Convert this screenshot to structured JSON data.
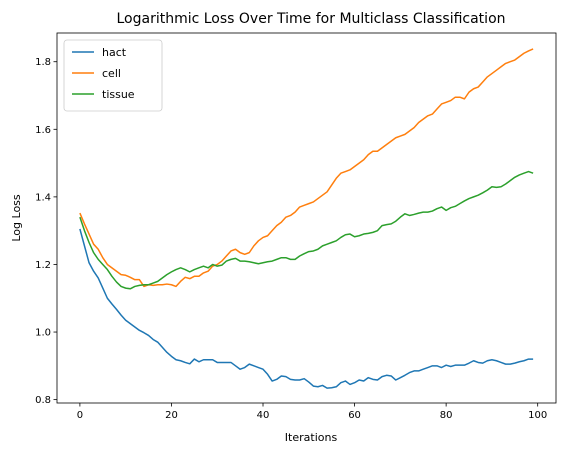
{
  "chart_data": {
    "type": "line",
    "title": "Logarithmic Loss Over Time for Multiclass Classification",
    "xlabel": "Iterations",
    "ylabel": "Log Loss",
    "xlim": [
      -5,
      104
    ],
    "ylim": [
      0.79,
      1.885
    ],
    "xticks": [
      0,
      20,
      40,
      60,
      80,
      100
    ],
    "xtick_labels": [
      "0",
      "20",
      "40",
      "60",
      "80",
      "100"
    ],
    "yticks": [
      0.8,
      1.0,
      1.2,
      1.4,
      1.6,
      1.8
    ],
    "ytick_labels": [
      "0.8",
      "1.0",
      "1.2",
      "1.4",
      "1.6",
      "1.8"
    ],
    "grid": false,
    "legend_position": "upper-left",
    "x": [
      0,
      1,
      2,
      3,
      4,
      5,
      6,
      7,
      8,
      9,
      10,
      11,
      12,
      13,
      14,
      15,
      16,
      17,
      18,
      19,
      20,
      21,
      22,
      23,
      24,
      25,
      26,
      27,
      28,
      29,
      30,
      31,
      32,
      33,
      34,
      35,
      36,
      37,
      38,
      39,
      40,
      41,
      42,
      43,
      44,
      45,
      46,
      47,
      48,
      49,
      50,
      51,
      52,
      53,
      54,
      55,
      56,
      57,
      58,
      59,
      60,
      61,
      62,
      63,
      64,
      65,
      66,
      67,
      68,
      69,
      70,
      71,
      72,
      73,
      74,
      75,
      76,
      77,
      78,
      79,
      80,
      81,
      82,
      83,
      84,
      85,
      86,
      87,
      88,
      89,
      90,
      91,
      92,
      93,
      94,
      95,
      96,
      97,
      98,
      99
    ],
    "series": [
      {
        "name": "hact",
        "color": "#1f77b4",
        "values": [
          1.305,
          1.255,
          1.205,
          1.18,
          1.16,
          1.13,
          1.1,
          1.083,
          1.067,
          1.05,
          1.035,
          1.025,
          1.015,
          1.005,
          0.998,
          0.99,
          0.978,
          0.97,
          0.955,
          0.94,
          0.928,
          0.918,
          0.915,
          0.91,
          0.906,
          0.92,
          0.912,
          0.918,
          0.918,
          0.918,
          0.91,
          0.91,
          0.91,
          0.91,
          0.9,
          0.89,
          0.895,
          0.905,
          0.9,
          0.895,
          0.89,
          0.875,
          0.855,
          0.86,
          0.87,
          0.868,
          0.86,
          0.858,
          0.858,
          0.862,
          0.852,
          0.84,
          0.838,
          0.842,
          0.834,
          0.835,
          0.838,
          0.85,
          0.855,
          0.845,
          0.85,
          0.858,
          0.855,
          0.865,
          0.86,
          0.858,
          0.868,
          0.872,
          0.87,
          0.858,
          0.865,
          0.872,
          0.88,
          0.885,
          0.885,
          0.89,
          0.895,
          0.9,
          0.9,
          0.895,
          0.902,
          0.898,
          0.902,
          0.902,
          0.902,
          0.908,
          0.915,
          0.91,
          0.908,
          0.915,
          0.918,
          0.915,
          0.91,
          0.905,
          0.905,
          0.908,
          0.912,
          0.915,
          0.92,
          0.92
        ]
      },
      {
        "name": "cell",
        "color": "#ff7f0e",
        "values": [
          1.352,
          1.32,
          1.29,
          1.26,
          1.245,
          1.22,
          1.2,
          1.19,
          1.18,
          1.17,
          1.168,
          1.162,
          1.155,
          1.155,
          1.135,
          1.14,
          1.138,
          1.14,
          1.14,
          1.142,
          1.14,
          1.135,
          1.15,
          1.162,
          1.158,
          1.165,
          1.165,
          1.175,
          1.18,
          1.195,
          1.2,
          1.21,
          1.225,
          1.24,
          1.245,
          1.235,
          1.23,
          1.235,
          1.255,
          1.27,
          1.28,
          1.285,
          1.3,
          1.315,
          1.325,
          1.34,
          1.345,
          1.355,
          1.37,
          1.375,
          1.38,
          1.385,
          1.395,
          1.405,
          1.415,
          1.435,
          1.455,
          1.47,
          1.475,
          1.48,
          1.49,
          1.5,
          1.51,
          1.525,
          1.535,
          1.535,
          1.545,
          1.555,
          1.565,
          1.575,
          1.58,
          1.585,
          1.595,
          1.605,
          1.62,
          1.63,
          1.64,
          1.645,
          1.66,
          1.675,
          1.68,
          1.685,
          1.695,
          1.695,
          1.69,
          1.71,
          1.72,
          1.725,
          1.74,
          1.755,
          1.765,
          1.775,
          1.785,
          1.795,
          1.8,
          1.805,
          1.815,
          1.825,
          1.832,
          1.838
        ]
      },
      {
        "name": "tissue",
        "color": "#2ca02c",
        "values": [
          1.34,
          1.3,
          1.265,
          1.235,
          1.215,
          1.2,
          1.185,
          1.165,
          1.148,
          1.135,
          1.13,
          1.128,
          1.135,
          1.138,
          1.14,
          1.14,
          1.145,
          1.15,
          1.16,
          1.17,
          1.178,
          1.185,
          1.19,
          1.185,
          1.178,
          1.185,
          1.19,
          1.195,
          1.19,
          1.2,
          1.195,
          1.198,
          1.21,
          1.215,
          1.218,
          1.21,
          1.21,
          1.208,
          1.205,
          1.202,
          1.205,
          1.208,
          1.21,
          1.215,
          1.22,
          1.22,
          1.215,
          1.215,
          1.225,
          1.232,
          1.238,
          1.24,
          1.245,
          1.255,
          1.26,
          1.265,
          1.27,
          1.28,
          1.288,
          1.29,
          1.282,
          1.285,
          1.29,
          1.292,
          1.295,
          1.3,
          1.315,
          1.318,
          1.32,
          1.328,
          1.34,
          1.35,
          1.345,
          1.348,
          1.352,
          1.355,
          1.355,
          1.358,
          1.365,
          1.37,
          1.36,
          1.368,
          1.372,
          1.38,
          1.388,
          1.395,
          1.4,
          1.405,
          1.412,
          1.42,
          1.43,
          1.428,
          1.43,
          1.438,
          1.448,
          1.458,
          1.465,
          1.47,
          1.475,
          1.47
        ]
      }
    ]
  }
}
